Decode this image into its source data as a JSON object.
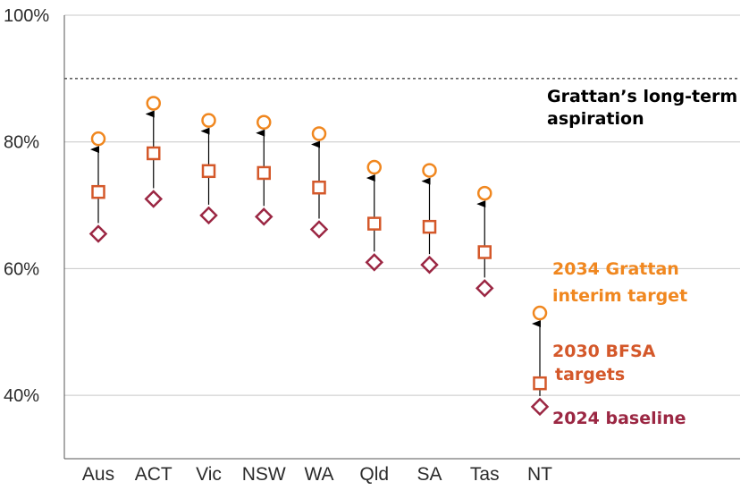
{
  "chart_data": {
    "type": "scatter",
    "categories": [
      "Aus",
      "ACT",
      "Vic",
      "NSW",
      "WA",
      "Qld",
      "SA",
      "Tas",
      "NT"
    ],
    "series": [
      {
        "name": "2024 baseline",
        "marker": "diamond",
        "color": "#9b2743",
        "values": [
          65.5,
          71.0,
          68.4,
          68.2,
          66.2,
          61.0,
          60.6,
          56.9,
          38.2
        ]
      },
      {
        "name": "2030 BFSA targets",
        "marker": "square",
        "color": "#d4582a",
        "values": [
          72.1,
          78.2,
          75.4,
          75.1,
          72.8,
          67.1,
          66.6,
          62.6,
          41.9
        ]
      },
      {
        "name": "2034 Grattan interim target",
        "marker": "circle",
        "color": "#f0871f",
        "values": [
          80.5,
          86.1,
          83.4,
          83.1,
          81.3,
          76.0,
          75.5,
          71.9,
          53.0
        ]
      }
    ],
    "ylim": [
      30,
      100
    ],
    "yticks": [
      {
        "value": 40,
        "label": "40%"
      },
      {
        "value": 60,
        "label": "60%"
      },
      {
        "value": 80,
        "label": "80%"
      },
      {
        "value": 100,
        "label": "100%"
      }
    ],
    "reference_line": {
      "value": 90,
      "style": "dashed",
      "label_lines": [
        "Grattan’s long-term",
        "aspiration"
      ]
    },
    "legend": {
      "placement": "inline-right",
      "interim_lines": [
        "2034 Grattan",
        "interim target"
      ],
      "bfsa_lines": [
        "2030 BFSA",
        "targets"
      ],
      "baseline_lines": [
        "2024 baseline"
      ]
    },
    "arrows": "from 2024 baseline up to 2034 Grattan interim target",
    "grid": true,
    "colors": {
      "grid": "#c8c8c8",
      "axis": "#555555",
      "arrow": "#000000",
      "text": "#2b2b2b",
      "aspiration_text": "#000000"
    }
  }
}
